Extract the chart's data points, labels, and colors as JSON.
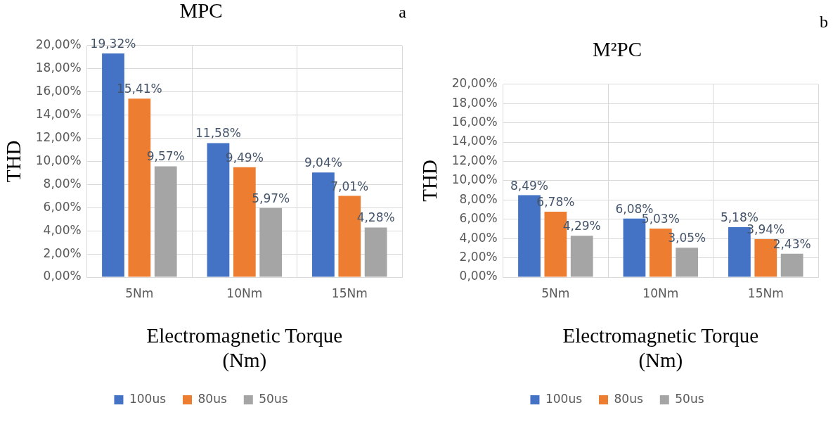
{
  "chart_data": [
    {
      "type": "bar",
      "title": "MPC",
      "xlabel": "Electromagnetic Torque\n(Nm)",
      "ylabel": "THD",
      "annotations": [
        "a"
      ],
      "categories": [
        "5Nm",
        "10Nm",
        "15Nm"
      ],
      "series": [
        {
          "name": "100us",
          "color": "#4472c4",
          "values": [
            19.32,
            11.58,
            9.04
          ],
          "value_labels": [
            "19,32%",
            "11,58%",
            "9,04%"
          ]
        },
        {
          "name": "80us",
          "color": "#ed7d31",
          "values": [
            15.41,
            9.49,
            7.01
          ],
          "value_labels": [
            "15,41%",
            "9,49%",
            "7,01%"
          ]
        },
        {
          "name": "50us",
          "color": "#a5a5a5",
          "values": [
            9.57,
            5.97,
            4.28
          ],
          "value_labels": [
            "9,57%",
            "5,97%",
            "4,28%"
          ]
        }
      ],
      "ylim": [
        0,
        20
      ],
      "yticks": [
        {
          "value": 0,
          "label": "0,00%"
        },
        {
          "value": 2,
          "label": "2,00%"
        },
        {
          "value": 4,
          "label": "4,00%"
        },
        {
          "value": 6,
          "label": "6,00%"
        },
        {
          "value": 8,
          "label": "8,00%"
        },
        {
          "value": 10,
          "label": "10,00%"
        },
        {
          "value": 12,
          "label": "12,00%"
        },
        {
          "value": 14,
          "label": "14,00%"
        },
        {
          "value": 16,
          "label": "16,00%"
        },
        {
          "value": 18,
          "label": "18,00%"
        },
        {
          "value": 20,
          "label": "20,00%"
        }
      ],
      "grid": true,
      "legend": "bottom"
    },
    {
      "type": "bar",
      "title": "M²PC",
      "xlabel": "Electromagnetic Torque\n(Nm)",
      "ylabel": "THD",
      "annotations": [
        "b"
      ],
      "categories": [
        "5Nm",
        "10Nm",
        "15Nm"
      ],
      "series": [
        {
          "name": "100us",
          "color": "#4472c4",
          "values": [
            8.49,
            6.08,
            5.18
          ],
          "value_labels": [
            "8,49%",
            "6,08%",
            "5,18%"
          ]
        },
        {
          "name": "80us",
          "color": "#ed7d31",
          "values": [
            6.78,
            5.03,
            3.94
          ],
          "value_labels": [
            "6,78%",
            "5,03%",
            "3,94%"
          ]
        },
        {
          "name": "50us",
          "color": "#a5a5a5",
          "values": [
            4.29,
            3.05,
            2.43
          ],
          "value_labels": [
            "4,29%",
            "3,05%",
            "2,43%"
          ]
        }
      ],
      "ylim": [
        0,
        20
      ],
      "yticks": [
        {
          "value": 0,
          "label": "0,00%"
        },
        {
          "value": 2,
          "label": "2,00%"
        },
        {
          "value": 4,
          "label": "4,00%"
        },
        {
          "value": 6,
          "label": "6,00%"
        },
        {
          "value": 8,
          "label": "8,00%"
        },
        {
          "value": 10,
          "label": "10,00%"
        },
        {
          "value": 12,
          "label": "12,00%"
        },
        {
          "value": 14,
          "label": "14,00%"
        },
        {
          "value": 16,
          "label": "16,00%"
        },
        {
          "value": 18,
          "label": "18,00%"
        },
        {
          "value": 20,
          "label": "20,00%"
        }
      ],
      "grid": true,
      "legend": "bottom"
    }
  ]
}
